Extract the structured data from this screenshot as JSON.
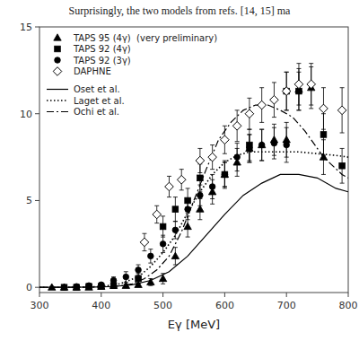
{
  "chart_data": {
    "type": "scatter",
    "title": "Surprisingly, the two models from refs. [14, 15] ma",
    "xlabel": "Eγ [MeV]",
    "xlim": [
      300,
      800
    ],
    "ylim": [
      -0.3,
      15
    ],
    "xticks": [
      300,
      400,
      500,
      600,
      700,
      800
    ],
    "yticks": [
      0,
      5,
      10,
      15
    ],
    "legend": "upper-left",
    "series": [
      {
        "name": "TAPS 95 (4γ)  (very preliminary)",
        "type": "scatter",
        "color": "black",
        "marker": "triangle",
        "x": [
          320,
          340,
          360,
          380,
          400,
          420,
          440,
          460,
          480,
          500,
          520,
          540,
          560,
          580,
          600,
          620,
          640,
          660,
          680,
          700,
          720,
          740,
          760
        ],
        "values": [
          0.0,
          0.0,
          0.0,
          0.0,
          0.05,
          0.1,
          0.1,
          0.15,
          0.3,
          0.5,
          1.8,
          3.5,
          4.5,
          5.5,
          6.5,
          7.2,
          8.0,
          8.2,
          8.5,
          8.5,
          11.4,
          11.5,
          7.5
        ],
        "errors": [
          0.05,
          0.05,
          0.05,
          0.05,
          0.1,
          0.1,
          0.1,
          0.1,
          0.2,
          0.3,
          0.5,
          0.6,
          0.6,
          0.7,
          0.7,
          0.8,
          0.8,
          0.9,
          0.9,
          1.0,
          1.2,
          1.2,
          1.0
        ]
      },
      {
        "name": "TAPS 92 (4γ)",
        "type": "scatter",
        "color": "black",
        "marker": "square",
        "x": [
          340,
          360,
          380,
          400,
          420,
          460,
          500,
          520,
          540,
          560,
          600,
          640,
          700,
          720,
          760,
          790
        ],
        "values": [
          0.0,
          0.0,
          0.05,
          0.05,
          0.1,
          0.5,
          3.5,
          4.5,
          5.0,
          6.3,
          6.5,
          8.2,
          11.3,
          11.3,
          8.8,
          7.0
        ],
        "errors": [
          0.05,
          0.05,
          0.1,
          0.1,
          0.15,
          0.3,
          0.6,
          0.7,
          0.7,
          0.8,
          0.8,
          0.9,
          1.1,
          1.1,
          1.2,
          1.0
        ]
      },
      {
        "name": "TAPS 92 (3γ)",
        "type": "scatter",
        "color": "black",
        "marker": "circle",
        "x": [
          340,
          360,
          380,
          400,
          420,
          440,
          460,
          480,
          500,
          520,
          540,
          560,
          580,
          600,
          620,
          640,
          660,
          680,
          700
        ],
        "values": [
          0.0,
          0.05,
          0.1,
          0.15,
          0.4,
          0.6,
          1.0,
          1.8,
          2.5,
          3.3,
          4.5,
          5.3,
          5.8,
          6.5,
          7.5,
          8.0,
          8.2,
          8.3,
          8.2
        ],
        "errors": [
          0.05,
          0.1,
          0.1,
          0.1,
          0.2,
          0.3,
          0.3,
          0.4,
          0.5,
          0.5,
          0.6,
          0.6,
          0.7,
          0.7,
          0.8,
          0.8,
          0.9,
          0.9,
          1.0
        ]
      },
      {
        "name": "DAPHNE",
        "type": "scatter",
        "color": "black",
        "marker": "diamond_open",
        "x": [
          470,
          490,
          510,
          530,
          560,
          580,
          600,
          620,
          640,
          660,
          680,
          700,
          720,
          740,
          760,
          790
        ],
        "values": [
          2.6,
          4.2,
          5.8,
          6.2,
          7.3,
          7.5,
          8.5,
          9.3,
          10.0,
          10.5,
          10.8,
          11.3,
          11.7,
          11.7,
          10.3,
          10.2
        ],
        "errors": [
          0.5,
          0.5,
          0.6,
          0.6,
          0.7,
          0.7,
          0.8,
          0.9,
          0.9,
          1.0,
          1.0,
          1.1,
          1.2,
          1.2,
          1.2,
          1.3
        ]
      },
      {
        "name": "Oset et al.",
        "type": "line",
        "color": "black",
        "line_style": "solid",
        "x": [
          300,
          350,
          390,
          420,
          450,
          480,
          510,
          540,
          570,
          600,
          630,
          660,
          690,
          720,
          750,
          780,
          800
        ],
        "values": [
          0.0,
          0.0,
          0.02,
          0.05,
          0.15,
          0.4,
          0.9,
          1.8,
          3.0,
          4.2,
          5.3,
          6.0,
          6.5,
          6.5,
          6.3,
          5.7,
          5.5
        ]
      },
      {
        "name": "Laget et al.",
        "type": "line",
        "color": "black",
        "line_style": "dotted",
        "x": [
          300,
          350,
          400,
          430,
          460,
          480,
          500,
          520,
          540,
          560,
          580,
          600,
          620,
          640,
          660,
          680,
          700,
          720,
          750,
          780,
          800
        ],
        "values": [
          0.0,
          0.0,
          0.05,
          0.2,
          0.6,
          1.2,
          2.0,
          3.0,
          4.3,
          5.5,
          6.5,
          7.2,
          7.6,
          7.8,
          7.8,
          7.8,
          7.8,
          7.8,
          7.7,
          7.6,
          7.5
        ]
      },
      {
        "name": "Ochi et al.",
        "type": "line",
        "color": "black",
        "line_style": "dashdot",
        "x": [
          300,
          350,
          400,
          430,
          450,
          470,
          490,
          510,
          530,
          550,
          570,
          590,
          610,
          630,
          650,
          670,
          690,
          710,
          730,
          760,
          790,
          800
        ],
        "values": [
          0.0,
          0.0,
          0.02,
          0.08,
          0.2,
          0.5,
          1.0,
          1.8,
          3.2,
          5.0,
          6.8,
          8.5,
          9.5,
          10.2,
          10.5,
          10.5,
          10.2,
          9.8,
          9.0,
          7.5,
          6.5,
          6.3
        ]
      }
    ]
  }
}
